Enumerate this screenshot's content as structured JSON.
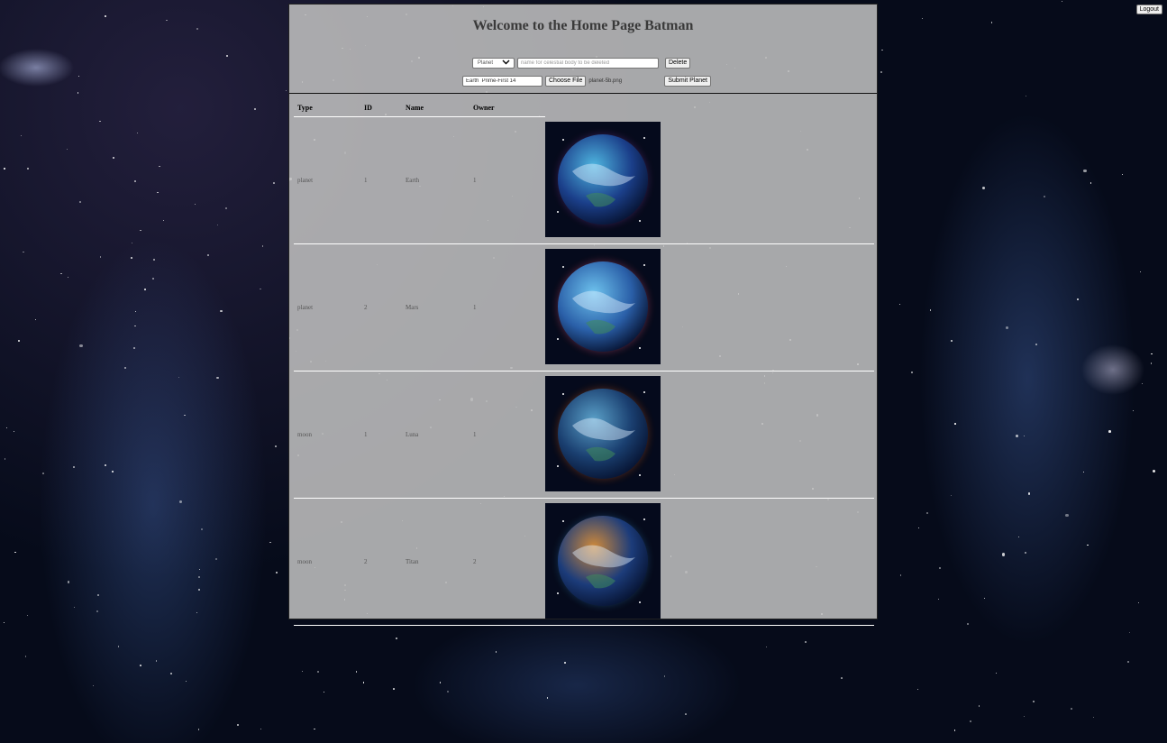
{
  "header": {
    "logout_label": "Logout",
    "title": "Welcome to the Home Page Batman"
  },
  "delete_form": {
    "type_select_value": "Planet",
    "name_placeholder": "name for celestial body to be deleted",
    "delete_label": "Delete"
  },
  "submit_form": {
    "name_value": "Earth  Prime-First 14",
    "choose_file_label": "Choose File",
    "file_name": "planet-5b.png",
    "submit_label": "Submit Planet"
  },
  "table": {
    "columns": [
      "Type",
      "ID",
      "Name",
      "Owner"
    ],
    "rows": [
      {
        "type": "planet",
        "id": "1",
        "name": "Earth",
        "owner": "1",
        "image_theme": [
          "#4fb6e0",
          "#1b3f8a",
          "#7a3fa8"
        ]
      },
      {
        "type": "planet",
        "id": "2",
        "name": "Mars",
        "owner": "1",
        "image_theme": [
          "#6ec3ee",
          "#2a5fa8",
          "#e05a8a"
        ]
      },
      {
        "type": "moon",
        "id": "1",
        "name": "Luna",
        "owner": "1",
        "image_theme": [
          "#5aa0c8",
          "#1a3f70",
          "#d0602a"
        ]
      },
      {
        "type": "moon",
        "id": "2",
        "name": "Titan",
        "owner": "2",
        "image_theme": [
          "#d08a3a",
          "#1c3c7a",
          "#2a6fb0"
        ]
      }
    ]
  }
}
